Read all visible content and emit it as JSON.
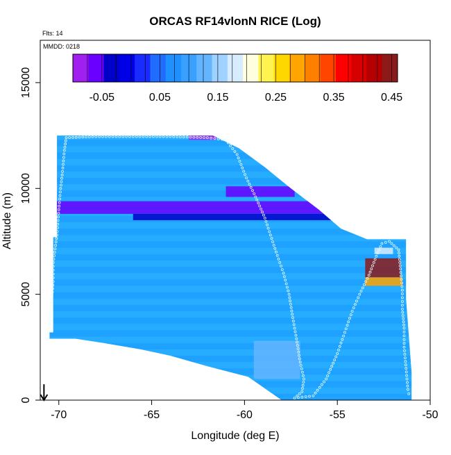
{
  "chart_data": {
    "type": "heatmap",
    "title": "ORCAS RF14vlonN RICE (Log)",
    "note_flights": "Flts: 14",
    "note_date": "MMDD: 0218",
    "xlabel": "Longitude (deg E)",
    "ylabel": "Altitude (m)",
    "xlim": [
      -71,
      -50
    ],
    "ylim": [
      0,
      17000
    ],
    "xticks": [
      -70,
      -65,
      -60,
      -55,
      -50
    ],
    "xtick_labels": [
      "-70",
      "-65",
      "-60",
      "-55",
      "-50"
    ],
    "yticks": [
      0,
      5000,
      10000,
      15000
    ],
    "ytick_labels": [
      "0",
      "5000",
      "10000",
      "15000"
    ],
    "colorbar": {
      "range": [
        -0.1,
        0.46
      ],
      "tick_values": [
        -0.05,
        0.05,
        0.15,
        0.25,
        0.35,
        0.45
      ],
      "tick_labels": [
        "-0.05",
        "0.05",
        "0.15",
        "0.25",
        "0.35",
        "0.45"
      ],
      "colors": [
        "#a020f0",
        "#6a00ff",
        "#0000c8",
        "#0000e6",
        "#1a2bff",
        "#1f6cff",
        "#1e90ff",
        "#3aa0ff",
        "#64b5ff",
        "#a0d2ff",
        "#d7ecff",
        "#ffffe0",
        "#fff44f",
        "#ffd700",
        "#ffa500",
        "#ff7f00",
        "#ff4500",
        "#ff0000",
        "#d70000",
        "#b40000",
        "#8b1a1a"
      ]
    },
    "domain_boundary": {
      "upper": [
        [
          -70.1,
          12500
        ],
        [
          -64,
          12500
        ],
        [
          -61.7,
          12500
        ],
        [
          -60.3,
          11900
        ],
        [
          -58.9,
          11000
        ],
        [
          -57.5,
          10000
        ],
        [
          -56,
          9000
        ],
        [
          -54.8,
          8100
        ],
        [
          -53.4,
          7600
        ],
        [
          -51.3,
          7600
        ],
        [
          -51.3,
          4800
        ],
        [
          -51,
          1300
        ]
      ],
      "lower": [
        [
          -51,
          0
        ],
        [
          -52.8,
          0
        ],
        [
          -55.5,
          0
        ],
        [
          -58,
          0
        ],
        [
          -59.8,
          1100
        ],
        [
          -62,
          1600
        ],
        [
          -64,
          2100
        ],
        [
          -65.6,
          2400
        ],
        [
          -67.6,
          2700
        ],
        [
          -69.1,
          2900
        ],
        [
          -70.5,
          2900
        ]
      ],
      "left": [
        [
          -70.5,
          2900
        ],
        [
          -70.5,
          3200
        ],
        [
          -70.3,
          3200
        ],
        [
          -70.3,
          7700
        ],
        [
          -70.1,
          7700
        ],
        [
          -70.1,
          12500
        ]
      ]
    },
    "features": [
      {
        "name": "dark blue band",
        "lon": [
          -70.3,
          -53.5
        ],
        "alt": [
          8800,
          9400
        ],
        "value": -0.05
      },
      {
        "name": "upper dark layer",
        "lon": [
          -61,
          -57.3
        ],
        "alt": [
          9600,
          10100
        ],
        "value": -0.06
      },
      {
        "name": "lower dark layer",
        "lon": [
          -66,
          -54
        ],
        "alt": [
          8500,
          8800
        ],
        "value": -0.03
      },
      {
        "name": "high ice core",
        "lon": [
          -53.5,
          -51.6
        ],
        "alt": [
          5800,
          6700
        ],
        "value": 0.45
      },
      {
        "name": "ice upper layer",
        "lon": [
          -53,
          -52
        ],
        "alt": [
          6900,
          7200
        ],
        "value": 0.18
      },
      {
        "name": "ice lower layer",
        "lon": [
          -53.5,
          -51.5
        ],
        "alt": [
          5400,
          5800
        ],
        "value": 0.28
      },
      {
        "name": "light plume",
        "lon": [
          -59.5,
          -57
        ],
        "alt": [
          1000,
          2800
        ],
        "value": 0.12
      },
      {
        "name": "thin top layer",
        "lon": [
          -63,
          -61.5
        ],
        "alt": [
          12300,
          12600
        ],
        "value": -0.08
      }
    ],
    "flight_track": [
      [
        -70.6,
        2900
      ],
      [
        -70.5,
        3600
      ],
      [
        -70.4,
        4600
      ],
      [
        -70.3,
        5600
      ],
      [
        -70.3,
        6500
      ],
      [
        -70.1,
        7800
      ],
      [
        -70,
        9000
      ],
      [
        -69.9,
        10000
      ],
      [
        -69.8,
        10800
      ],
      [
        -69.7,
        11800
      ],
      [
        -69.6,
        12400
      ],
      [
        -68,
        12450
      ],
      [
        -66,
        12450
      ],
      [
        -64,
        12450
      ],
      [
        -62,
        12400
      ],
      [
        -61,
        12300
      ],
      [
        -60.4,
        11600
      ],
      [
        -59.9,
        10500
      ],
      [
        -59.4,
        9600
      ],
      [
        -58.9,
        8600
      ],
      [
        -58.6,
        7800
      ],
      [
        -58.3,
        7000
      ],
      [
        -57.9,
        6000
      ],
      [
        -57.6,
        5000
      ],
      [
        -57.4,
        3900
      ],
      [
        -57.2,
        2900
      ],
      [
        -57.0,
        1800
      ],
      [
        -56.8,
        1000
      ],
      [
        -56.9,
        400
      ],
      [
        -57.3,
        100
      ],
      [
        -56.3,
        200
      ],
      [
        -55.6,
        1000
      ],
      [
        -55.0,
        2200
      ],
      [
        -54.6,
        3200
      ],
      [
        -54.2,
        4200
      ],
      [
        -53.8,
        5000
      ],
      [
        -53.3,
        5900
      ],
      [
        -52.9,
        6800
      ],
      [
        -52.6,
        7400
      ],
      [
        -52.2,
        7500
      ],
      [
        -51.7,
        7100
      ],
      [
        -51.6,
        6200
      ],
      [
        -51.5,
        5200
      ],
      [
        -51.5,
        4300
      ],
      [
        -51.4,
        3400
      ],
      [
        -51.4,
        2500
      ],
      [
        -51.3,
        1500
      ],
      [
        -51.2,
        500
      ],
      [
        -51.1,
        100
      ]
    ],
    "arrow_marker": {
      "lon": -70.8,
      "alt_top": 750,
      "alt_bottom": 0
    }
  }
}
